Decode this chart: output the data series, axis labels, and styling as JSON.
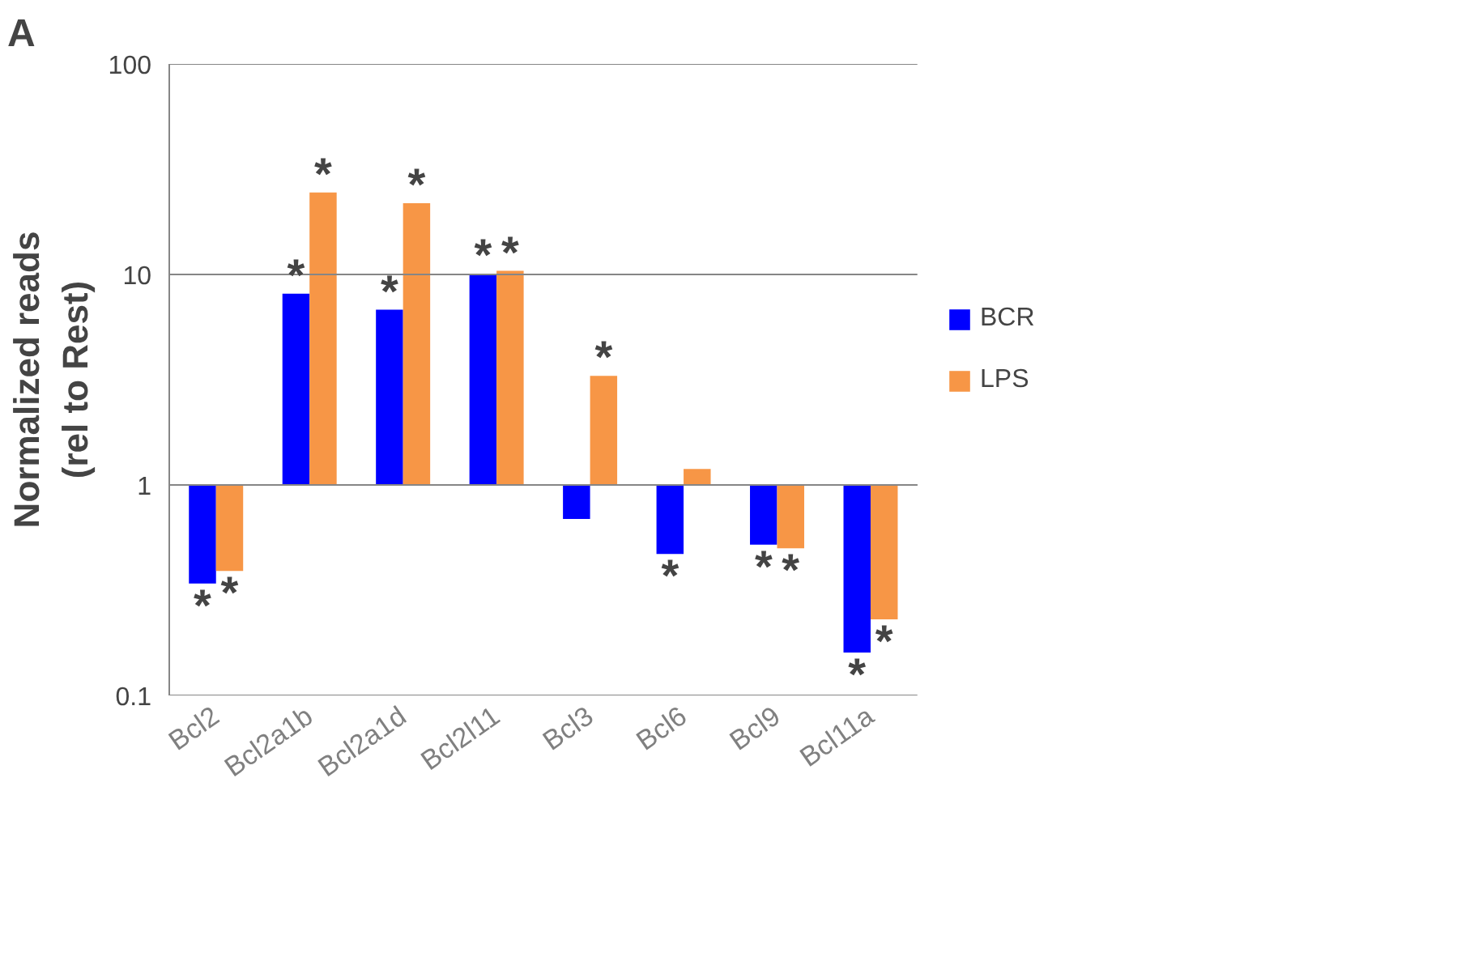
{
  "chart_data": {
    "type": "bar",
    "ylabel": "Normalized reads\n(rel to Rest)",
    "categories": [
      "Bcl2",
      "Bcl2a1b",
      "Bcl2a1d",
      "Bcl2l11",
      "Bcl3",
      "Bcl6",
      "Bcl9",
      "Bcl11a"
    ],
    "series": [
      {
        "name": "BCR",
        "color": "#0000ff",
        "base": [
          1,
          1,
          1,
          1,
          1,
          1,
          1,
          1
        ],
        "values": [
          -0.66,
          7.1,
          5.8,
          9.1,
          -0.31,
          -0.53,
          -0.48,
          -0.84
        ],
        "value_labels": [
          "*",
          "*",
          "*",
          "*",
          null,
          "*",
          "*",
          "*"
        ]
      },
      {
        "name": "LPS",
        "color": "#f79646",
        "base": [
          1,
          1,
          1,
          1,
          1,
          1,
          1,
          1
        ],
        "values": [
          -0.61,
          23.5,
          20.8,
          9.4,
          2.3,
          0.19,
          -0.5,
          -0.77
        ],
        "value_labels": [
          "*",
          "*",
          "*",
          "*",
          "*",
          null,
          "*",
          "*"
        ]
      }
    ],
    "log": true,
    "ylim": [
      0.1,
      100
    ],
    "yticks": [
      0.1,
      1,
      10,
      100
    ],
    "grid": "y",
    "legend": "right",
    "annotations": [
      "A"
    ]
  }
}
